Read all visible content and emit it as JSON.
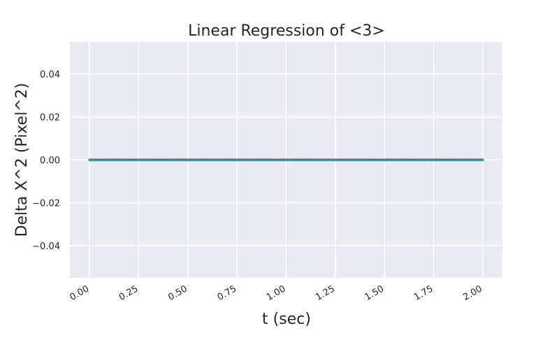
{
  "chart_data": {
    "type": "line",
    "title": "Linear Regression of <3>",
    "xlabel": "t (sec)",
    "ylabel": "Delta X^2 (Pixel^2)",
    "xlim": [
      -0.1,
      2.1
    ],
    "ylim": [
      -0.055,
      0.055
    ],
    "x_ticks": [
      0.0,
      0.25,
      0.5,
      0.75,
      1.0,
      1.25,
      1.5,
      1.75,
      2.0
    ],
    "x_tick_labels": [
      "0.00",
      "0.25",
      "0.50",
      "0.75",
      "1.00",
      "1.25",
      "1.50",
      "1.75",
      "2.00"
    ],
    "y_ticks": [
      -0.04,
      -0.02,
      0.0,
      0.02,
      0.04
    ],
    "y_tick_labels": [
      "−0.04",
      "−0.02",
      "0.00",
      "0.02",
      "0.04"
    ],
    "grid": true,
    "background_color": "#eaeaf2",
    "grid_color": "#ffffff",
    "series": [
      {
        "kind": "scatter",
        "color": "#2ec4c0",
        "x_start": 0.0,
        "x_end": 2.0,
        "x_step": 0.01,
        "y": 0.0
      },
      {
        "kind": "line",
        "color": "#9b3a6b",
        "x": [
          0.0,
          2.0
        ],
        "y": [
          0.0,
          0.0
        ]
      }
    ]
  }
}
